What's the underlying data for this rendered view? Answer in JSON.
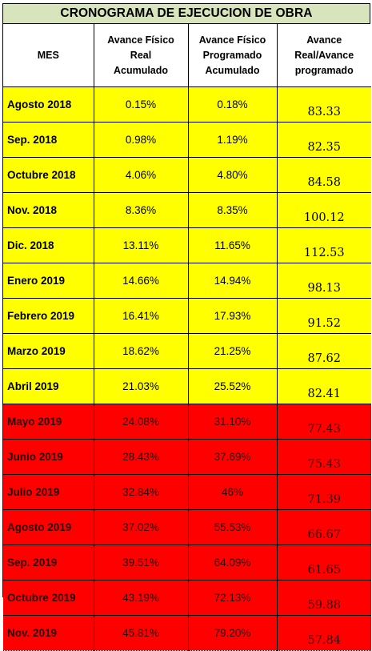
{
  "title": "CRONOGRAMA DE EJECUCION DE OBRA",
  "headers": {
    "mes": "MES",
    "real": [
      "Avance Físico",
      "Real",
      "Acumulado"
    ],
    "programado": [
      "Avance Físico",
      "Programado",
      "Acumulado"
    ],
    "ratio": [
      "Avance",
      "Real/Avance",
      "programado"
    ]
  },
  "colors": {
    "header_fill": "#d8e4bc",
    "on_schedule_fill": "#ffff00",
    "delayed_fill": "#ff0000"
  },
  "rows": [
    {
      "mes": "Agosto 2018",
      "real": "0.15%",
      "programado": "0.18%",
      "ratio": "83.33",
      "status": "yellow"
    },
    {
      "mes": "Sep. 2018",
      "real": "0.98%",
      "programado": "1.19%",
      "ratio": "82.35",
      "status": "yellow"
    },
    {
      "mes": "Octubre 2018",
      "real": "4.06%",
      "programado": "4.80%",
      "ratio": "84.58",
      "status": "yellow"
    },
    {
      "mes": "Nov. 2018",
      "real": "8.36%",
      "programado": "8.35%",
      "ratio": "100.12",
      "status": "yellow"
    },
    {
      "mes": "Dic. 2018",
      "real": "13.11%",
      "programado": "11.65%",
      "ratio": "112.53",
      "status": "yellow"
    },
    {
      "mes": "Enero 2019",
      "real": "14.66%",
      "programado": "14.94%",
      "ratio": "98.13",
      "status": "yellow"
    },
    {
      "mes": "Febrero 2019",
      "real": "16.41%",
      "programado": "17.93%",
      "ratio": "91.52",
      "status": "yellow"
    },
    {
      "mes": "Marzo 2019",
      "real": "18.62%",
      "programado": "21.25%",
      "ratio": "87.62",
      "status": "yellow"
    },
    {
      "mes": "Abril 2019",
      "real": "21.03%",
      "programado": "25.52%",
      "ratio": "82.41",
      "status": "yellow"
    },
    {
      "mes": "Mayo 2019",
      "real": "24.08%",
      "programado": "31.10%",
      "ratio": "77.43",
      "status": "red"
    },
    {
      "mes": "Junio 2019",
      "real": "28.43%",
      "programado": "37.69%",
      "ratio": "75.43",
      "status": "red"
    },
    {
      "mes": "Julio 2019",
      "real": "32.84%",
      "programado": "46%",
      "ratio": "71.39",
      "status": "red"
    },
    {
      "mes": "Agosto 2019",
      "real": "37.02%",
      "programado": "55.53%",
      "ratio": "66.67",
      "status": "red"
    },
    {
      "mes": "Sep. 2019",
      "real": "39.51%",
      "programado": "64.09%",
      "ratio": "61.65",
      "status": "red"
    },
    {
      "mes": "Octubre 2019",
      "real": "43.19%",
      "programado": "72.13%",
      "ratio": "59.88",
      "status": "red"
    },
    {
      "mes": "Nov. 2019",
      "real": "45.81%",
      "programado": "79.20%",
      "ratio": "57.84",
      "status": "red"
    }
  ]
}
